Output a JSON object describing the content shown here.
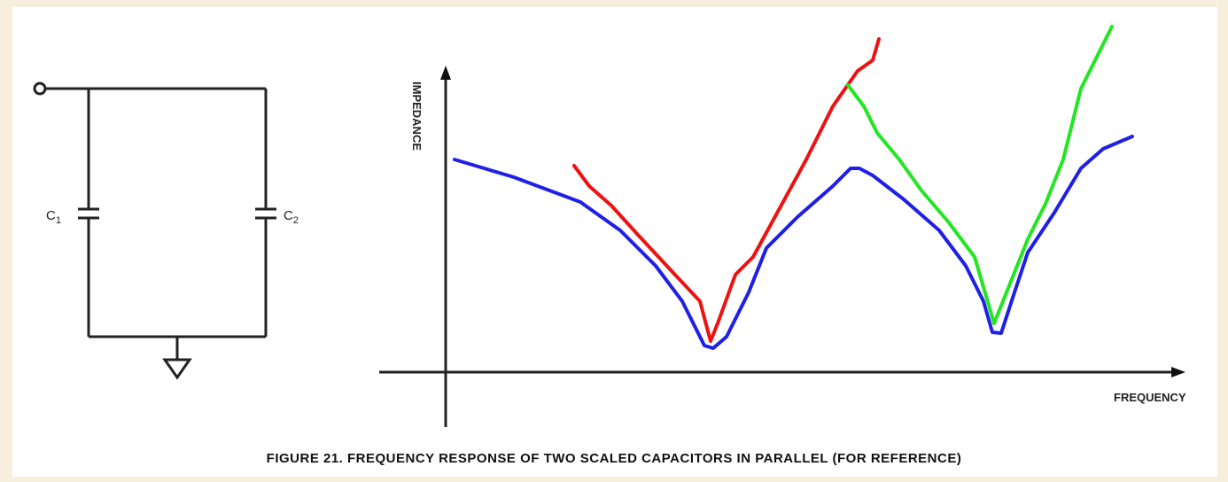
{
  "circuit": {
    "components": [
      {
        "label": "C",
        "subscript": "1"
      },
      {
        "label": "C",
        "subscript": "2"
      }
    ]
  },
  "plot": {
    "y_axis_label": "IMPEDANCE",
    "x_axis_label": "FREQUENCY"
  },
  "caption": "FIGURE 21.  FREQUENCY RESPONSE OF TWO SCALED CAPACITORS IN PARALLEL (FOR REFERENCE)"
}
